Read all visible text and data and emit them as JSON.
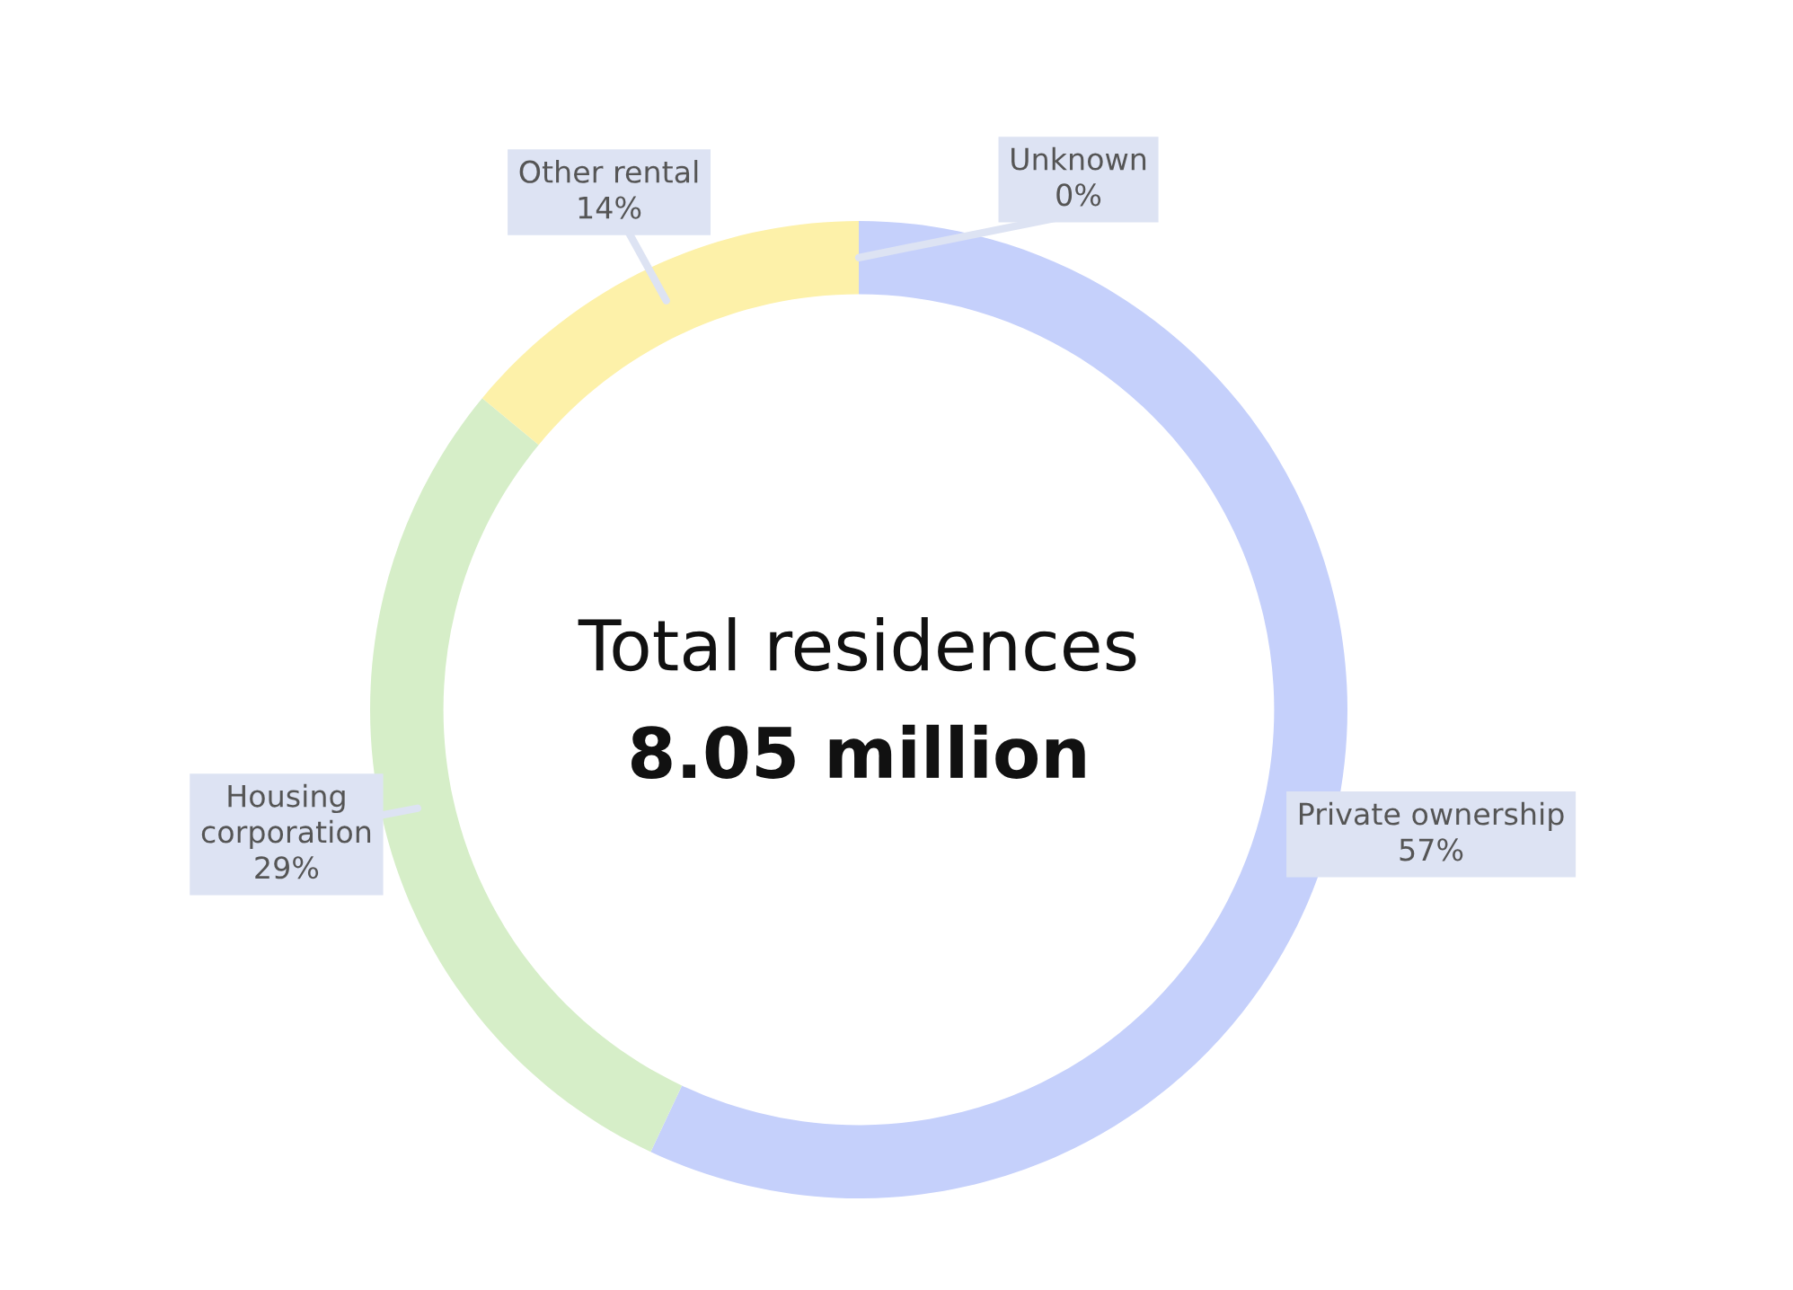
{
  "chart_data": {
    "type": "donut",
    "categories": [
      "Private ownership",
      "Housing corporation",
      "Other rental",
      "Unknown"
    ],
    "values": [
      57,
      29,
      14,
      0
    ],
    "value_labels": [
      "57%",
      "29%",
      "14%",
      "0%"
    ],
    "colors": [
      "#c5d0fb",
      "#d6eec8",
      "#fdf1a9",
      "#c8c8c8"
    ],
    "annotations": [
      "Total residences",
      "8.05 million"
    ],
    "legend": false
  }
}
